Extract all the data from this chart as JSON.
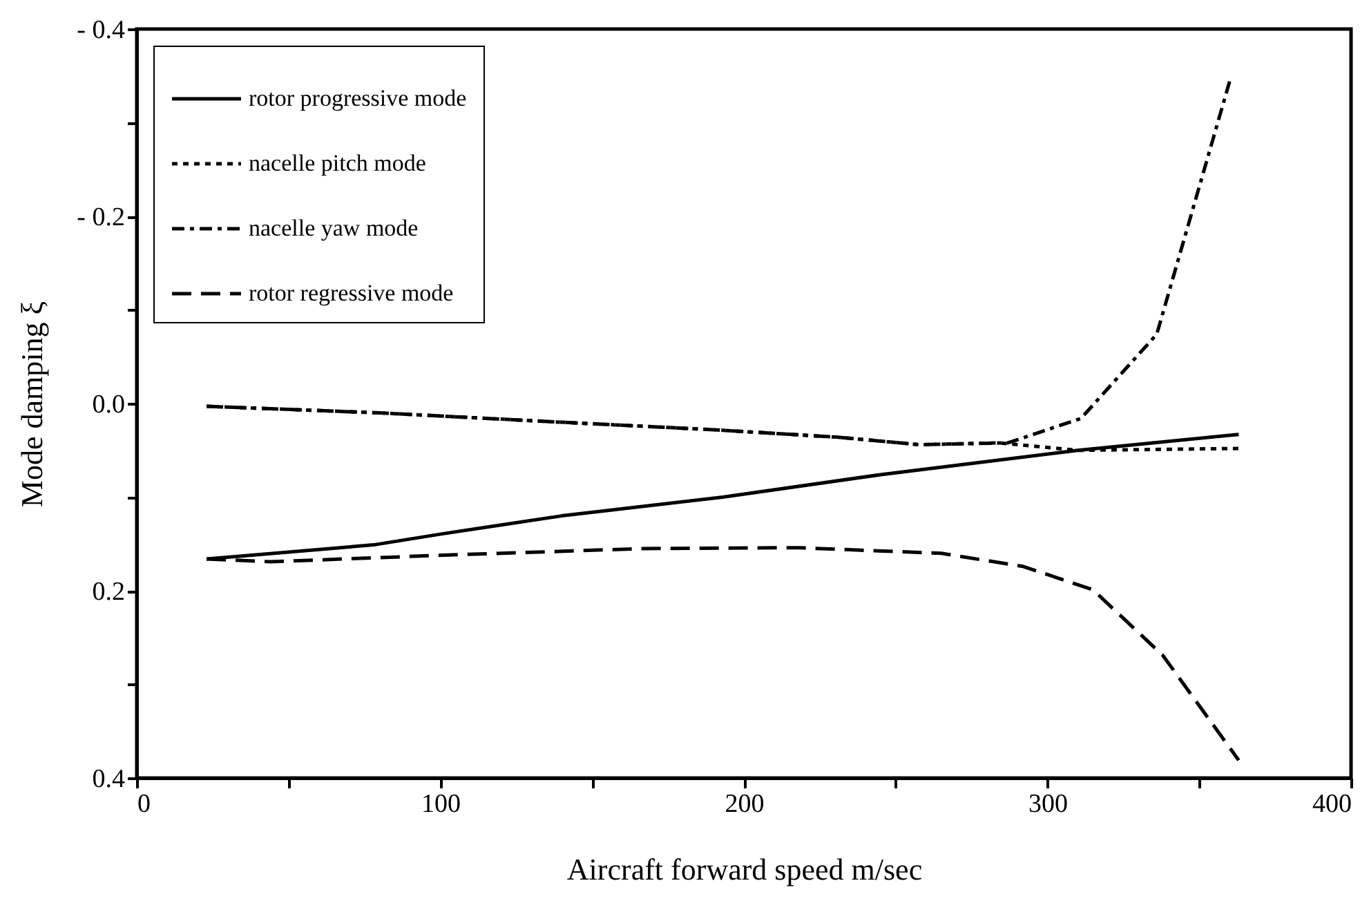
{
  "chart_data": {
    "type": "line",
    "xlabel": "Aircraft forward speed m/sec",
    "ylabel": "Mode damping      ξ",
    "xlim": [
      0,
      400
    ],
    "ylim": [
      0.4,
      -0.4
    ],
    "xticks": [
      0,
      {
        "value": 50,
        "label": null
      },
      100,
      {
        "value": 150,
        "label": null
      },
      200,
      {
        "value": 250,
        "label": null
      },
      300,
      {
        "value": 350,
        "label": null
      },
      400
    ],
    "yticks": [
      {
        "value": -0.4,
        "label": "- 0.4"
      },
      {
        "value": -0.3,
        "label": null
      },
      {
        "value": -0.2,
        "label": "- 0.2"
      },
      {
        "value": -0.1,
        "label": null
      },
      {
        "value": 0,
        "label": "0.0"
      },
      {
        "value": 0.1,
        "label": null
      },
      {
        "value": 0.2,
        "label": "0.2"
      },
      {
        "value": 0.3,
        "label": null
      },
      {
        "value": 0.4,
        "label": "0.4"
      }
    ],
    "grid": false,
    "legend": "top left",
    "series": [
      {
        "name": "rotor progressive mode",
        "color": "#000000",
        "line_style": "solid",
        "x": [
          23,
          78,
          101,
          140,
          193,
          245,
          310,
          363
        ],
        "values": [
          0.166,
          0.151,
          0.139,
          0.12,
          0.1,
          0.076,
          0.05,
          0.033
        ]
      },
      {
        "name": "nacelle pitch mode",
        "color": "#000000",
        "line_style": "dotted",
        "x": [
          23,
          80,
          140,
          190,
          231,
          258,
          284,
          310,
          363
        ],
        "values": [
          0.003,
          0.01,
          0.02,
          0.028,
          0.036,
          0.044,
          0.042,
          0.05,
          0.048
        ]
      },
      {
        "name": "nacelle yaw mode",
        "color": "#000000",
        "line_style": "dashdot",
        "x": [
          23,
          80,
          140,
          190,
          231,
          258,
          287,
          311,
          336,
          360
        ],
        "values": [
          0.003,
          0.01,
          0.02,
          0.028,
          0.036,
          0.044,
          0.042,
          0.016,
          -0.074,
          -0.344
        ]
      },
      {
        "name": "rotor regressive mode",
        "color": "#000000",
        "line_style": "dashed",
        "x": [
          23,
          44,
          101,
          166,
          218,
          265,
          292,
          315,
          338,
          363
        ],
        "values": [
          0.166,
          0.169,
          0.162,
          0.155,
          0.154,
          0.16,
          0.174,
          0.199,
          0.269,
          0.381
        ]
      }
    ]
  }
}
